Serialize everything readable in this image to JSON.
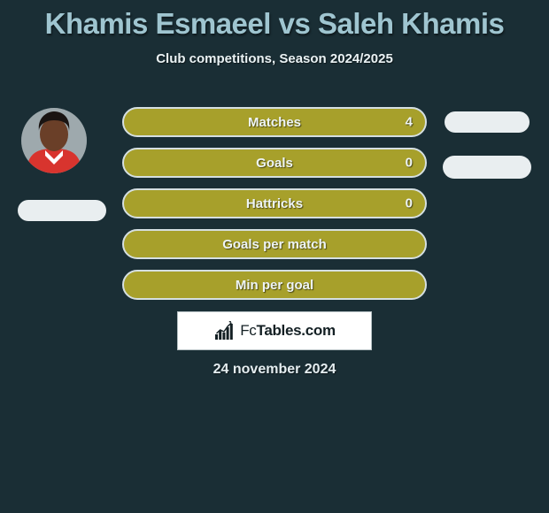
{
  "title": "Khamis Esmaeel vs Saleh Khamis",
  "subtitle": "Club competitions, Season 2024/2025",
  "date": "24 november 2024",
  "logo_text": "FcTables.com",
  "colors": {
    "background": "#1a2e35",
    "title": "#9fc5d0",
    "bar_fill": "#a7a02b",
    "bar_border": "#d5dfe1",
    "pill": "#e9eef0",
    "text_light": "#eef4f5"
  },
  "stats": [
    {
      "label": "Matches",
      "value_left": "4"
    },
    {
      "label": "Goals",
      "value_left": "0"
    },
    {
      "label": "Hattricks",
      "value_left": "0"
    },
    {
      "label": "Goals per match",
      "value_left": ""
    },
    {
      "label": "Min per goal",
      "value_left": ""
    }
  ],
  "avatar": {
    "skin": "#6a3f28",
    "hair": "#1a1412",
    "shirt": "#d8342e",
    "shirt_collar": "#ffffff",
    "bg": "#9ea9ad"
  },
  "chart_icon": {
    "bars": [
      6,
      10,
      8,
      14,
      18
    ],
    "stroke": "#142024"
  }
}
